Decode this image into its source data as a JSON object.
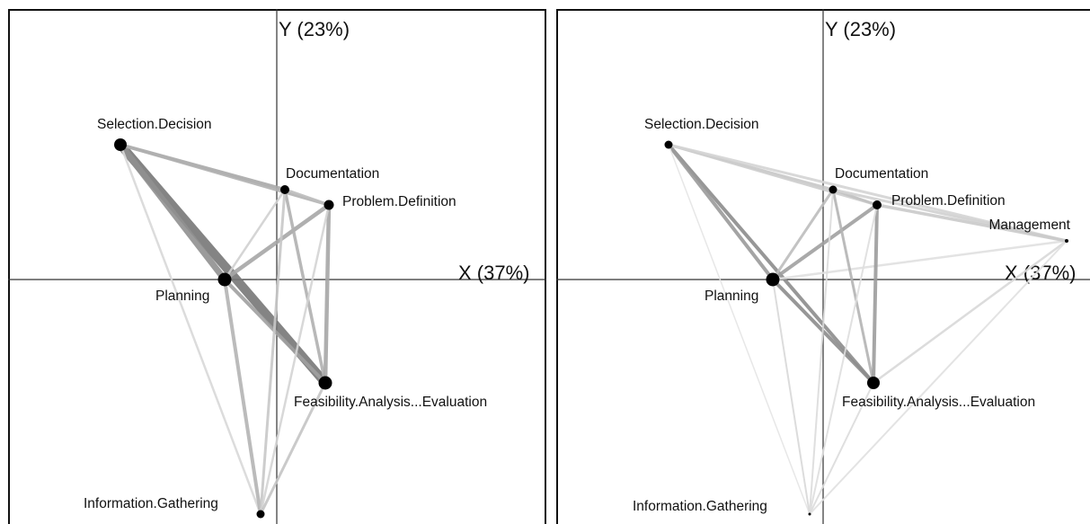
{
  "panels": [
    {
      "id": "left",
      "axes": {
        "x_label": "X (37%)",
        "y_label": "Y (23%)"
      },
      "nodes": [
        {
          "label": "Selection.Decision",
          "r": 7
        },
        {
          "label": "Documentation",
          "r": 5
        },
        {
          "label": "Problem.Definition",
          "r": 5.5
        },
        {
          "label": "Planning",
          "r": 7.5
        },
        {
          "label": "Feasibility.Analysis...Evaluation",
          "r": 7.5
        },
        {
          "label": "Information.Gathering",
          "r": 4.5
        }
      ],
      "edges": [
        {
          "from": 0,
          "to": 4,
          "weight": 10,
          "shade": "#777777"
        },
        {
          "from": 0,
          "to": 3,
          "weight": 7,
          "shade": "#909090"
        },
        {
          "from": 0,
          "to": 1,
          "weight": 4,
          "shade": "#a8a8a8"
        },
        {
          "from": 0,
          "to": 2,
          "weight": 3.5,
          "shade": "#b0b0b0"
        },
        {
          "from": 0,
          "to": 5,
          "weight": 2.5,
          "shade": "#d8d8d8"
        },
        {
          "from": 3,
          "to": 2,
          "weight": 4.5,
          "shade": "#a6a6a6"
        },
        {
          "from": 3,
          "to": 1,
          "weight": 2.5,
          "shade": "#d0d0d0"
        },
        {
          "from": 3,
          "to": 4,
          "weight": 4,
          "shade": "#a0a0a0"
        },
        {
          "from": 3,
          "to": 5,
          "weight": 4,
          "shade": "#b4b4b4"
        },
        {
          "from": 1,
          "to": 2,
          "weight": 3.5,
          "shade": "#bdbdbd"
        },
        {
          "from": 1,
          "to": 4,
          "weight": 3.5,
          "shade": "#b0b0b0"
        },
        {
          "from": 1,
          "to": 5,
          "weight": 3,
          "shade": "#c8c8c8"
        },
        {
          "from": 2,
          "to": 4,
          "weight": 4.5,
          "shade": "#a6a6a6"
        },
        {
          "from": 2,
          "to": 5,
          "weight": 2.5,
          "shade": "#d4d4d4"
        },
        {
          "from": 4,
          "to": 5,
          "weight": 3,
          "shade": "#c4c4c4"
        }
      ]
    },
    {
      "id": "right",
      "axes": {
        "x_label": "X (37%)",
        "y_label": "Y (23%)"
      },
      "nodes": [
        {
          "label": "Selection.Decision",
          "r": 4.5
        },
        {
          "label": "Documentation",
          "r": 4.5
        },
        {
          "label": "Problem.Definition",
          "r": 5
        },
        {
          "label": "Planning",
          "r": 7.5
        },
        {
          "label": "Feasibility.Analysis...Evaluation",
          "r": 7
        },
        {
          "label": "Information.Gathering",
          "r": 1.5
        },
        {
          "label": "Management",
          "r": 2
        }
      ],
      "edges": [
        {
          "from": 0,
          "to": 4,
          "weight": 4,
          "shade": "#8c8c8c"
        },
        {
          "from": 0,
          "to": 3,
          "weight": 4,
          "shade": "#9a9a9a"
        },
        {
          "from": 0,
          "to": 1,
          "weight": 3,
          "shade": "#c8c8c8"
        },
        {
          "from": 0,
          "to": 2,
          "weight": 3,
          "shade": "#cccccc"
        },
        {
          "from": 0,
          "to": 6,
          "weight": 3,
          "shade": "#d4d4d4"
        },
        {
          "from": 0,
          "to": 5,
          "weight": 1.5,
          "shade": "#e4e4e4"
        },
        {
          "from": 3,
          "to": 2,
          "weight": 4,
          "shade": "#a0a0a0"
        },
        {
          "from": 3,
          "to": 1,
          "weight": 3,
          "shade": "#bdbdbd"
        },
        {
          "from": 3,
          "to": 4,
          "weight": 4,
          "shade": "#8c8c8c"
        },
        {
          "from": 3,
          "to": 5,
          "weight": 2,
          "shade": "#d8d8d8"
        },
        {
          "from": 3,
          "to": 6,
          "weight": 2.5,
          "shade": "#e0e0e0"
        },
        {
          "from": 1,
          "to": 2,
          "weight": 3,
          "shade": "#c0c0c0"
        },
        {
          "from": 1,
          "to": 4,
          "weight": 3,
          "shade": "#b4b4b4"
        },
        {
          "from": 1,
          "to": 6,
          "weight": 3,
          "shade": "#d0d0d0"
        },
        {
          "from": 1,
          "to": 5,
          "weight": 2,
          "shade": "#dcdcdc"
        },
        {
          "from": 2,
          "to": 4,
          "weight": 4,
          "shade": "#9c9c9c"
        },
        {
          "from": 2,
          "to": 6,
          "weight": 3.5,
          "shade": "#cacaca"
        },
        {
          "from": 2,
          "to": 5,
          "weight": 2,
          "shade": "#dedede"
        },
        {
          "from": 4,
          "to": 6,
          "weight": 2.5,
          "shade": "#d8d8d8"
        },
        {
          "from": 4,
          "to": 5,
          "weight": 2,
          "shade": "#dcdcdc"
        },
        {
          "from": 5,
          "to": 6,
          "weight": 2,
          "shade": "#e0e0e0"
        }
      ]
    }
  ]
}
